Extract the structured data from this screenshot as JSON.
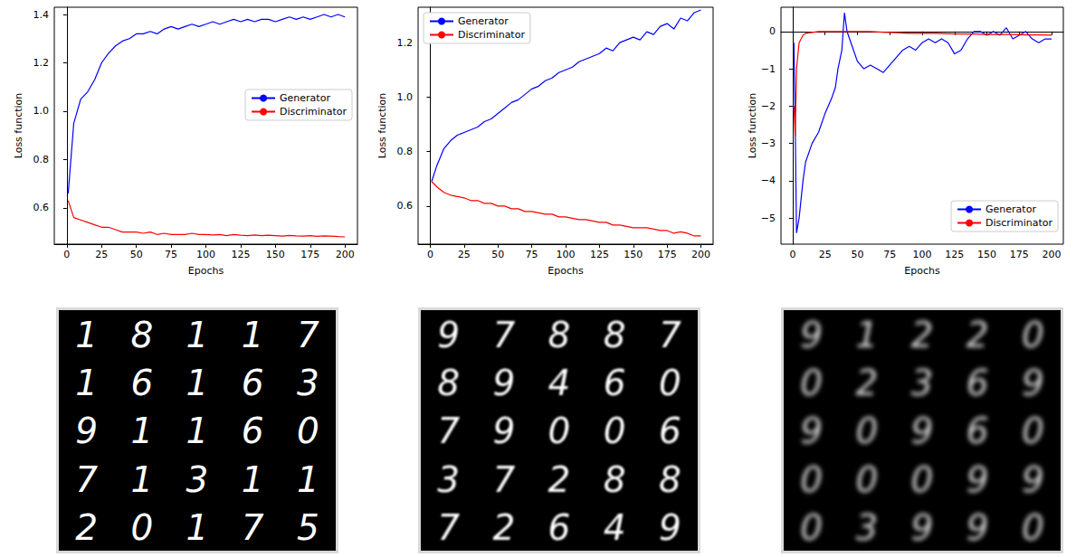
{
  "chart_data": [
    {
      "type": "line",
      "x_label": "Epochs",
      "y_label": "Loss function",
      "grid": false,
      "legend": "center right",
      "xlim": [
        -9,
        209
      ],
      "xticks": [
        0,
        25,
        50,
        75,
        100,
        125,
        150,
        175,
        200
      ],
      "ylim": [
        0.45,
        1.43
      ],
      "yticks": [
        0.6,
        0.8,
        {
          "value": 1,
          "label": "1.0"
        },
        1.2,
        1.4
      ],
      "x": [
        1,
        5,
        10,
        15,
        20,
        25,
        30,
        35,
        40,
        45,
        50,
        55,
        60,
        65,
        70,
        75,
        80,
        85,
        90,
        95,
        100,
        105,
        110,
        115,
        120,
        125,
        130,
        135,
        140,
        145,
        150,
        155,
        160,
        165,
        170,
        175,
        180,
        185,
        190,
        195,
        200
      ],
      "series": [
        {
          "name": "Generator",
          "color": "#0000ff",
          "values": [
            0.66,
            0.95,
            1.05,
            1.08,
            1.13,
            1.2,
            1.24,
            1.27,
            1.29,
            1.3,
            1.32,
            1.32,
            1.33,
            1.32,
            1.34,
            1.35,
            1.34,
            1.35,
            1.36,
            1.35,
            1.36,
            1.37,
            1.36,
            1.37,
            1.38,
            1.37,
            1.38,
            1.37,
            1.38,
            1.38,
            1.37,
            1.38,
            1.39,
            1.38,
            1.39,
            1.38,
            1.39,
            1.4,
            1.39,
            1.4,
            1.39
          ]
        },
        {
          "name": "Discriminator",
          "color": "#ff0000",
          "values": [
            0.63,
            0.56,
            0.55,
            0.54,
            0.53,
            0.52,
            0.52,
            0.51,
            0.5,
            0.5,
            0.5,
            0.495,
            0.5,
            0.49,
            0.495,
            0.49,
            0.49,
            0.49,
            0.495,
            0.49,
            0.49,
            0.488,
            0.49,
            0.485,
            0.49,
            0.487,
            0.485,
            0.488,
            0.485,
            0.487,
            0.485,
            0.483,
            0.486,
            0.484,
            0.483,
            0.485,
            0.482,
            0.484,
            0.483,
            0.481,
            0.48
          ]
        }
      ]
    },
    {
      "type": "line",
      "x_label": "Epochs",
      "y_label": "Loss function",
      "grid": false,
      "legend": "upper left",
      "xlim": [
        -9,
        209
      ],
      "xticks": [
        0,
        25,
        50,
        75,
        100,
        125,
        150,
        175,
        200
      ],
      "ylim": [
        0.46,
        1.33
      ],
      "yticks": [
        0.6,
        0.8,
        {
          "value": 1,
          "label": "1.0"
        },
        1.2
      ],
      "x": [
        1,
        5,
        10,
        15,
        20,
        25,
        30,
        35,
        40,
        45,
        50,
        55,
        60,
        65,
        70,
        75,
        80,
        85,
        90,
        95,
        100,
        105,
        110,
        115,
        120,
        125,
        130,
        135,
        140,
        145,
        150,
        155,
        160,
        165,
        170,
        175,
        180,
        185,
        190,
        195,
        200
      ],
      "series": [
        {
          "name": "Generator",
          "color": "#0000ff",
          "values": [
            0.69,
            0.75,
            0.81,
            0.84,
            0.86,
            0.87,
            0.88,
            0.89,
            0.91,
            0.92,
            0.94,
            0.96,
            0.98,
            0.99,
            1.01,
            1.03,
            1.04,
            1.06,
            1.07,
            1.09,
            1.1,
            1.11,
            1.13,
            1.14,
            1.15,
            1.16,
            1.18,
            1.17,
            1.2,
            1.21,
            1.22,
            1.21,
            1.24,
            1.23,
            1.26,
            1.27,
            1.25,
            1.29,
            1.28,
            1.31,
            1.32
          ]
        },
        {
          "name": "Discriminator",
          "color": "#ff0000",
          "values": [
            0.69,
            0.67,
            0.65,
            0.64,
            0.635,
            0.63,
            0.62,
            0.62,
            0.61,
            0.61,
            0.6,
            0.6,
            0.59,
            0.59,
            0.58,
            0.58,
            0.575,
            0.57,
            0.57,
            0.56,
            0.56,
            0.555,
            0.55,
            0.55,
            0.545,
            0.54,
            0.54,
            0.53,
            0.53,
            0.525,
            0.52,
            0.52,
            0.52,
            0.515,
            0.51,
            0.51,
            0.5,
            0.505,
            0.5,
            0.49,
            0.49
          ]
        }
      ]
    },
    {
      "type": "line",
      "x_label": "Epochs",
      "y_label": "Loss function",
      "grid": false,
      "legend": "lower right",
      "xlim": [
        -9,
        209
      ],
      "xticks": [
        0,
        25,
        50,
        75,
        100,
        125,
        150,
        175,
        200
      ],
      "ylim": [
        -5.7,
        0.65
      ],
      "yticks": [
        {
          "value": -5,
          "label": "−5"
        },
        {
          "value": -4,
          "label": "−4"
        },
        {
          "value": -3,
          "label": "−3"
        },
        {
          "value": -2,
          "label": "−2"
        },
        {
          "value": -1,
          "label": "−1"
        },
        0
      ],
      "series": [
        {
          "name": "Generator",
          "color": "#0000ff",
          "x": [
            1,
            2,
            3,
            5,
            8,
            10,
            15,
            20,
            25,
            30,
            33,
            35,
            38,
            40,
            42,
            45,
            50,
            55,
            60,
            65,
            70,
            75,
            80,
            85,
            90,
            95,
            100,
            105,
            110,
            115,
            120,
            125,
            130,
            135,
            140,
            145,
            150,
            155,
            160,
            165,
            170,
            175,
            180,
            185,
            190,
            195,
            200
          ],
          "values": [
            -0.3,
            -2.5,
            -5.4,
            -5.0,
            -4.0,
            -3.5,
            -3.0,
            -2.7,
            -2.2,
            -1.8,
            -1.5,
            -1.0,
            -0.5,
            0.5,
            0.0,
            -0.3,
            -0.8,
            -1.0,
            -0.9,
            -1.0,
            -1.1,
            -0.9,
            -0.7,
            -0.5,
            -0.4,
            -0.5,
            -0.3,
            -0.2,
            -0.3,
            -0.2,
            -0.3,
            -0.6,
            -0.5,
            -0.2,
            0.0,
            0.0,
            -0.1,
            0.0,
            -0.1,
            0.1,
            -0.2,
            -0.1,
            0.0,
            -0.2,
            -0.3,
            -0.2,
            -0.2
          ]
        },
        {
          "name": "Discriminator",
          "color": "#ff0000",
          "x": [
            1,
            2,
            3,
            5,
            8,
            10,
            20,
            30,
            40,
            50,
            60,
            70,
            80,
            90,
            100,
            110,
            120,
            130,
            140,
            150,
            160,
            170,
            180,
            190,
            200
          ],
          "values": [
            -2.0,
            -2.8,
            -1.0,
            -0.3,
            -0.1,
            -0.05,
            0.0,
            0.0,
            0.0,
            0.0,
            0.0,
            -0.02,
            -0.03,
            -0.05,
            -0.05,
            -0.05,
            -0.06,
            -0.07,
            -0.07,
            -0.08,
            -0.08,
            -0.08,
            -0.09,
            -0.09,
            -0.1
          ]
        }
      ]
    }
  ],
  "images": [
    {
      "rows": [
        [
          "1",
          "8",
          "1",
          "1",
          "7"
        ],
        [
          "1",
          "6",
          "1",
          "6",
          "3"
        ],
        [
          "9",
          "1",
          "1",
          "6",
          "0"
        ],
        [
          "7",
          "1",
          "3",
          "1",
          "1"
        ],
        [
          "2",
          "0",
          "1",
          "7",
          "5"
        ]
      ]
    },
    {
      "rows": [
        [
          "9",
          "7",
          "8",
          "8",
          "7"
        ],
        [
          "8",
          "9",
          "4",
          "6",
          "0"
        ],
        [
          "7",
          "9",
          "0",
          "0",
          "6"
        ],
        [
          "3",
          "7",
          "2",
          "8",
          "8"
        ],
        [
          "7",
          "2",
          "6",
          "4",
          "9"
        ]
      ]
    },
    {
      "rows": [
        [
          "9",
          "1",
          "2",
          "2",
          "0"
        ],
        [
          "0",
          "2",
          "3",
          "6",
          "9"
        ],
        [
          "9",
          "0",
          "9",
          "6",
          "0"
        ],
        [
          "0",
          "0",
          "0",
          "9",
          "9"
        ],
        [
          "0",
          "3",
          "9",
          "9",
          "0"
        ]
      ]
    }
  ]
}
